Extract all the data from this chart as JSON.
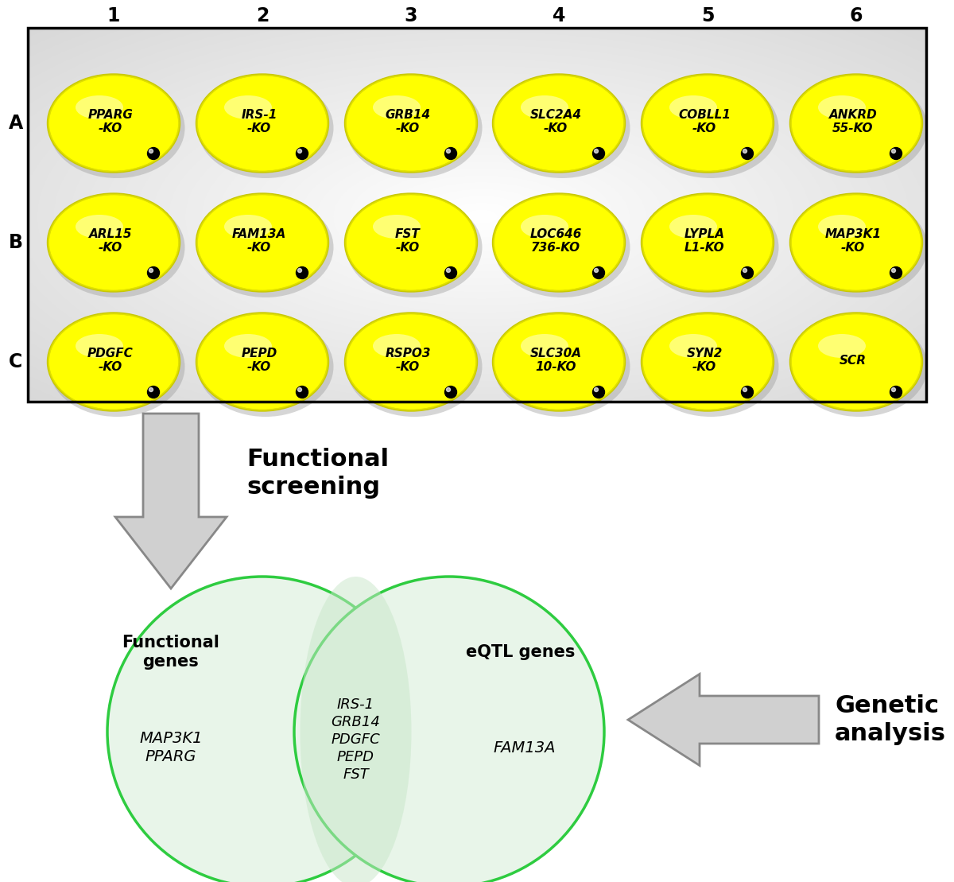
{
  "grid_rows": [
    "A",
    "B",
    "C"
  ],
  "grid_cols": [
    "1",
    "2",
    "3",
    "4",
    "5",
    "6"
  ],
  "well_labels": [
    [
      "PPARG\n-KO",
      "IRS-1\n-KO",
      "GRB14\n-KO",
      "SLC2A4\n-KO",
      "COBLL1\n-KO",
      "ANKRD\n55-KO"
    ],
    [
      "ARL15\n-KO",
      "FAM13A\n-KO",
      "FST\n-KO",
      "LOC646\n736-KO",
      "LYPLA\nL1-KO",
      "MAP3K1\n-KO"
    ],
    [
      "PDGFC\n-KO",
      "PEPD\n-KO",
      "RSPO3\n-KO",
      "SLC30A\n10-KO",
      "SYN2\n-KO",
      "SCR"
    ]
  ],
  "venn_fill": "#e8f5e9",
  "venn_edge_color": "#2ecc40",
  "venn_left_only": "MAP3K1\nPPARG",
  "venn_overlap": "IRS-1\nGRB14\nPDGFC\nPEPD\nFST",
  "venn_right_only": "FAM13A",
  "venn_label_left": "Functional\ngenes",
  "venn_label_right": "eQTL genes",
  "arrow_down_text": "Functional\nscreening",
  "arrow_right_text": "Genetic\nanalysis"
}
